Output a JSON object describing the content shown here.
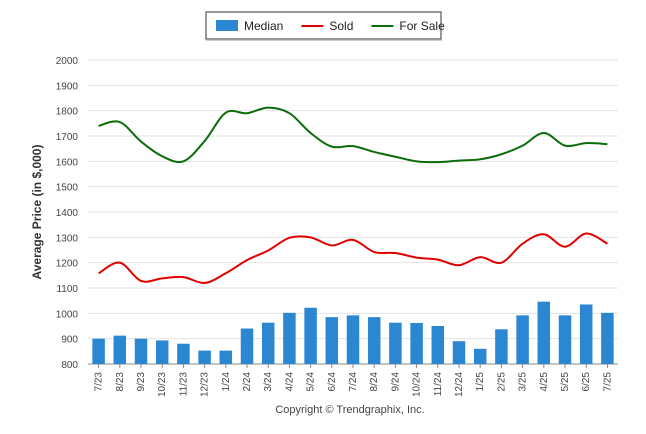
{
  "chart_data": {
    "type": "bar",
    "categories": [
      "7/23",
      "8/23",
      "9/23",
      "10/23",
      "11/23",
      "12/23",
      "1/24",
      "2/24",
      "3/24",
      "4/24",
      "5/24",
      "6/24",
      "7/24",
      "8/24",
      "9/24",
      "10/24",
      "11/24",
      "12/24",
      "1/25",
      "2/25",
      "3/25",
      "4/25",
      "5/25",
      "6/25",
      "7/25"
    ],
    "series": [
      {
        "name": "Median",
        "kind": "bar",
        "color": "#2b87d1",
        "values": [
          900,
          912,
          900,
          893,
          880,
          853,
          853,
          940,
          963,
          1002,
          1022,
          985,
          992,
          985,
          963,
          962,
          950,
          890,
          860,
          937,
          992,
          1046,
          992,
          1035,
          1002
        ]
      },
      {
        "name": "Sold",
        "kind": "line",
        "color": "#e00000",
        "values": [
          1158,
          1200,
          1128,
          1138,
          1143,
          1120,
          1158,
          1210,
          1248,
          1298,
          1300,
          1268,
          1290,
          1242,
          1238,
          1220,
          1212,
          1190,
          1222,
          1200,
          1275,
          1312,
          1263,
          1315,
          1275
        ]
      },
      {
        "name": "For Sale",
        "kind": "line",
        "color": "#0a6d0a",
        "values": [
          1740,
          1755,
          1678,
          1620,
          1600,
          1680,
          1792,
          1790,
          1812,
          1790,
          1712,
          1658,
          1660,
          1637,
          1618,
          1600,
          1597,
          1603,
          1608,
          1628,
          1662,
          1712,
          1662,
          1672,
          1668
        ]
      }
    ],
    "ylabel": "Average Price (in $,000)",
    "ylim": [
      800,
      2000
    ],
    "yticks": [
      800,
      900,
      1000,
      1100,
      1200,
      1300,
      1400,
      1500,
      1600,
      1700,
      1800,
      1900,
      2000
    ],
    "grid": true,
    "legend_position": "top-center",
    "copyright": "Copyright © Trendgraphix, Inc."
  }
}
